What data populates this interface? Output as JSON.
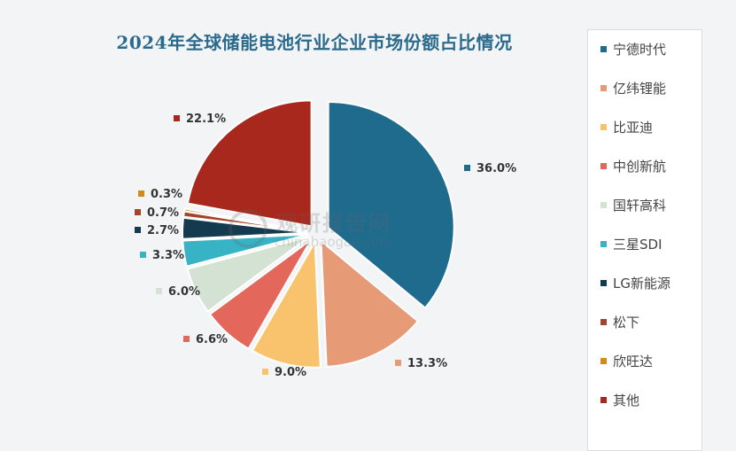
{
  "chart_data": {
    "type": "pie",
    "title": "2024年全球储能电池行业企业市场份额占比情况",
    "legend_position": "right",
    "slices": [
      {
        "label": "宁德时代",
        "value": 36.0,
        "display": "36.0%",
        "color": "#1f6b8e"
      },
      {
        "label": "亿纬锂能",
        "value": 13.3,
        "display": "13.3%",
        "color": "#e79a76"
      },
      {
        "label": "比亚迪",
        "value": 9.0,
        "display": "9.0%",
        "color": "#f9c26d"
      },
      {
        "label": "中创新航",
        "value": 6.6,
        "display": "6.6%",
        "color": "#e4675b"
      },
      {
        "label": "国轩高科",
        "value": 6.0,
        "display": "6.0%",
        "color": "#d3e2d2"
      },
      {
        "label": "三星SDI",
        "value": 3.3,
        "display": "3.3%",
        "color": "#38b3c6"
      },
      {
        "label": "LG新能源",
        "value": 2.7,
        "display": "2.7%",
        "color": "#143a4f"
      },
      {
        "label": "松下",
        "value": 0.7,
        "display": "0.7%",
        "color": "#a3452a"
      },
      {
        "label": "欣旺达",
        "value": 0.3,
        "display": "0.3%",
        "color": "#d48a1a"
      },
      {
        "label": "其他",
        "value": 22.1,
        "display": "22.1%",
        "color": "#a8281d"
      }
    ]
  },
  "watermark": {
    "main": "观研报告网",
    "sub": "chinabaogao.com"
  }
}
